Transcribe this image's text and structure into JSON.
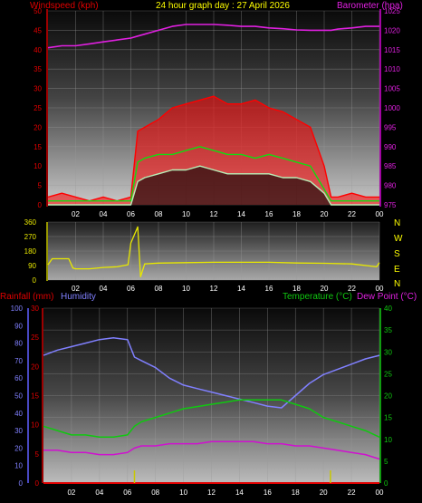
{
  "header": {
    "title": "24 hour graph day : 27 April 2026"
  },
  "chart_data": [
    {
      "type": "line",
      "panel": "wind-baro",
      "ylabel_left": "Windspeed (kph)",
      "ylabel_right": "Barometer (hpa)",
      "x_ticks": [
        "02",
        "04",
        "06",
        "08",
        "10",
        "12",
        "14",
        "16",
        "18",
        "20",
        "22",
        "00"
      ],
      "ylim_left": [
        0,
        50
      ],
      "ylim_right": [
        975,
        1025
      ],
      "y_ticks_left": [
        0,
        5,
        10,
        15,
        20,
        25,
        30,
        35,
        40,
        45,
        50
      ],
      "y_ticks_right": [
        975,
        980,
        985,
        990,
        995,
        1000,
        1005,
        1010,
        1015,
        1020,
        1025
      ],
      "grid": true,
      "x_hours": [
        0,
        1,
        2,
        3,
        4,
        5,
        6,
        6.5,
        7,
        8,
        9,
        10,
        11,
        12,
        13,
        14,
        15,
        16,
        17,
        18,
        19,
        20,
        20.5,
        21,
        22,
        23,
        24
      ],
      "series": [
        {
          "role": "barometer",
          "color": "#e020e0",
          "axis": "right",
          "values": [
            1015.5,
            1016,
            1016,
            1016.5,
            1017,
            1017.5,
            1018,
            1018.5,
            1019,
            1020,
            1021,
            1021.5,
            1021.5,
            1021.5,
            1021.3,
            1021,
            1021,
            1020.6,
            1020.4,
            1020.1,
            1020,
            1020,
            1020,
            1020.3,
            1020.6,
            1021,
            1021
          ]
        },
        {
          "role": "gust",
          "color": "#ff0000",
          "axis": "left",
          "values": [
            2,
            3,
            2,
            1,
            2,
            1,
            2,
            19,
            20,
            22,
            25,
            26,
            27,
            28,
            26,
            26,
            27,
            25,
            24,
            22,
            20,
            10,
            2,
            2,
            3,
            2,
            2
          ]
        },
        {
          "role": "average",
          "color": "#10dd10",
          "axis": "left",
          "values": [
            1,
            1,
            1,
            1,
            1,
            1,
            1,
            11,
            12,
            13,
            13,
            14,
            15,
            14,
            13,
            13,
            12,
            13,
            12,
            11,
            10,
            4,
            1,
            1,
            1,
            1,
            1
          ]
        },
        {
          "role": "wind",
          "color": "#b8f0b8",
          "axis": "left",
          "values": [
            0,
            0,
            0,
            0,
            0,
            0,
            0,
            6,
            7,
            8,
            9,
            9,
            10,
            9,
            8,
            8,
            8,
            8,
            7,
            7,
            6,
            3,
            0,
            0,
            0,
            0,
            0
          ]
        }
      ]
    },
    {
      "type": "line",
      "panel": "wind-direction",
      "x_ticks": [
        "02",
        "04",
        "06",
        "08",
        "10",
        "12",
        "14",
        "16",
        "18",
        "20",
        "22",
        "00"
      ],
      "y_ticks": [
        0,
        90,
        180,
        270,
        360
      ],
      "ylim": [
        0,
        360
      ],
      "compass": [
        "N",
        "W",
        "S",
        "E",
        "N"
      ],
      "grid": true,
      "x_hours": [
        0,
        0.3,
        1.5,
        1.8,
        2,
        3,
        4,
        5,
        5.8,
        6,
        6.3,
        6.5,
        6.7,
        7,
        8,
        10,
        12,
        14,
        16,
        18,
        20,
        22,
        23.8,
        24
      ],
      "values": [
        95,
        132,
        132,
        75,
        70,
        70,
        78,
        82,
        95,
        230,
        290,
        330,
        20,
        100,
        105,
        108,
        110,
        110,
        110,
        106,
        104,
        100,
        82,
        108
      ],
      "color": "#e8e800"
    },
    {
      "type": "line",
      "panel": "temp-humidity-rain",
      "ylabel_rain": "Rainfall (mm)",
      "ylabel_humidity": "Humidity",
      "ylabel_temp": "Temperature (°C)",
      "ylabel_dew": "Dew Point (°C)",
      "x_ticks": [
        "02",
        "04",
        "06",
        "08",
        "10",
        "12",
        "14",
        "16",
        "18",
        "20",
        "22",
        "00"
      ],
      "humidity_ticks": [
        0,
        10,
        20,
        30,
        40,
        50,
        60,
        70,
        80,
        90,
        100
      ],
      "rain_ticks": [
        0,
        5,
        10,
        15,
        20,
        25,
        30
      ],
      "temp_ticks": [
        0,
        5,
        10,
        15,
        20,
        25,
        30,
        35,
        40
      ],
      "ylim_temp": [
        0,
        40
      ],
      "ylim_humidity": [
        0,
        100
      ],
      "ylim_rain": [
        0,
        30
      ],
      "grid": true,
      "x_hours": [
        0,
        1,
        2,
        3,
        4,
        5,
        6,
        6.5,
        7,
        8,
        9,
        10,
        11,
        12,
        13,
        14,
        15,
        16,
        17,
        18,
        19,
        20,
        21,
        22,
        23,
        24
      ],
      "series": [
        {
          "role": "humidity",
          "color": "#8080ff",
          "axis": "humidity",
          "values": [
            73,
            76,
            78,
            80,
            82,
            83,
            82,
            72,
            70,
            66,
            60,
            56,
            54,
            52,
            50,
            48,
            46,
            44,
            43,
            50,
            57,
            62,
            65,
            68,
            71,
            73
          ]
        },
        {
          "role": "temperature",
          "color": "#10c810",
          "axis": "temp",
          "values": [
            13,
            12,
            11,
            11,
            10.5,
            10.5,
            11,
            13,
            14,
            15,
            16,
            17,
            17.5,
            18,
            18.5,
            19,
            19,
            19,
            19,
            18,
            17,
            15,
            14,
            13,
            12,
            10.5
          ]
        },
        {
          "role": "dew_point",
          "color": "#d010d0",
          "axis": "temp",
          "values": [
            7.5,
            7.5,
            7,
            7,
            6.5,
            6.5,
            7,
            8,
            8.5,
            8.5,
            9,
            9,
            9,
            9.5,
            9.5,
            9.5,
            9.5,
            9,
            9,
            8.5,
            8.5,
            8,
            7.5,
            7,
            6.5,
            5.5
          ]
        },
        {
          "role": "rainfall",
          "color": "#e00000",
          "axis": "rain",
          "values": [
            0,
            0,
            0,
            0,
            0,
            0,
            0,
            0,
            0,
            0,
            0,
            0,
            0,
            0,
            0,
            0,
            0,
            0,
            0,
            0,
            0,
            0,
            0,
            0,
            0,
            0
          ]
        }
      ],
      "markers_hours": [
        6.5,
        20.5
      ],
      "marker_color": "#c8c800"
    }
  ]
}
